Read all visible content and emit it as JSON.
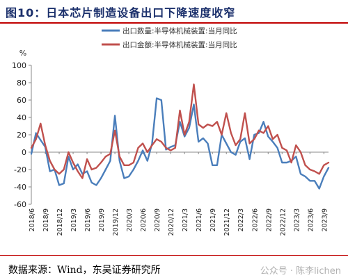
{
  "title": "图10：日本芯片制造设备出口下降速度收窄",
  "source": "数据来源：Wind，东吴证券研究所",
  "watermark": "公众号 · 陈李lichen",
  "chart_data": {
    "type": "line",
    "unit_label": "%",
    "ylim": [
      -60,
      100
    ],
    "yticks": [
      -60,
      -40,
      -20,
      0,
      20,
      40,
      60,
      80,
      100
    ],
    "x_start": "2018/6",
    "x_tick_labels": [
      "2018/6",
      "2018/9",
      "2018/12",
      "2019/3",
      "2019/6",
      "2019/9",
      "2019/12",
      "2020/3",
      "2020/6",
      "2020/9",
      "2020/12",
      "2021/3",
      "2021/6",
      "2021/9",
      "2021/12",
      "2022/3",
      "2022/6",
      "2022/9",
      "2022/12",
      "2023/3",
      "2023/6",
      "2023/9"
    ],
    "legend_position": "top",
    "grid": false,
    "series": [
      {
        "name": "出口数量:半导体机械装置:当月同比",
        "color": "#4a7ebb",
        "values": [
          -2,
          22,
          14,
          6,
          -22,
          -20,
          -38,
          -36,
          -5,
          -20,
          -14,
          -25,
          -22,
          -35,
          -38,
          -30,
          -20,
          -10,
          42,
          -10,
          -30,
          -28,
          -20,
          -10,
          2,
          -10,
          10,
          62,
          60,
          3,
          6,
          8,
          35,
          18,
          28,
          55,
          12,
          16,
          10,
          -15,
          -15,
          20,
          10,
          0,
          -3,
          12,
          16,
          -8,
          20,
          22,
          35,
          18,
          12,
          5,
          -12,
          -12,
          -10,
          -5,
          -25,
          -28,
          -33,
          -33,
          -42,
          -28,
          -18
        ]
      },
      {
        "name": "出口金额:半导体机械装置:当月同比",
        "color": "#c0504d",
        "values": [
          5,
          15,
          33,
          8,
          -10,
          -20,
          -25,
          -20,
          0,
          -12,
          -22,
          -30,
          -8,
          -20,
          -18,
          -12,
          -5,
          -2,
          25,
          -5,
          -15,
          -15,
          -12,
          5,
          10,
          0,
          8,
          15,
          12,
          5,
          2,
          5,
          48,
          20,
          35,
          78,
          32,
          28,
          32,
          30,
          35,
          20,
          45,
          22,
          8,
          15,
          45,
          10,
          15,
          25,
          22,
          30,
          15,
          20,
          5,
          2,
          -12,
          8,
          0,
          -15,
          -20,
          -22,
          -25,
          -15,
          -12
        ]
      }
    ]
  }
}
